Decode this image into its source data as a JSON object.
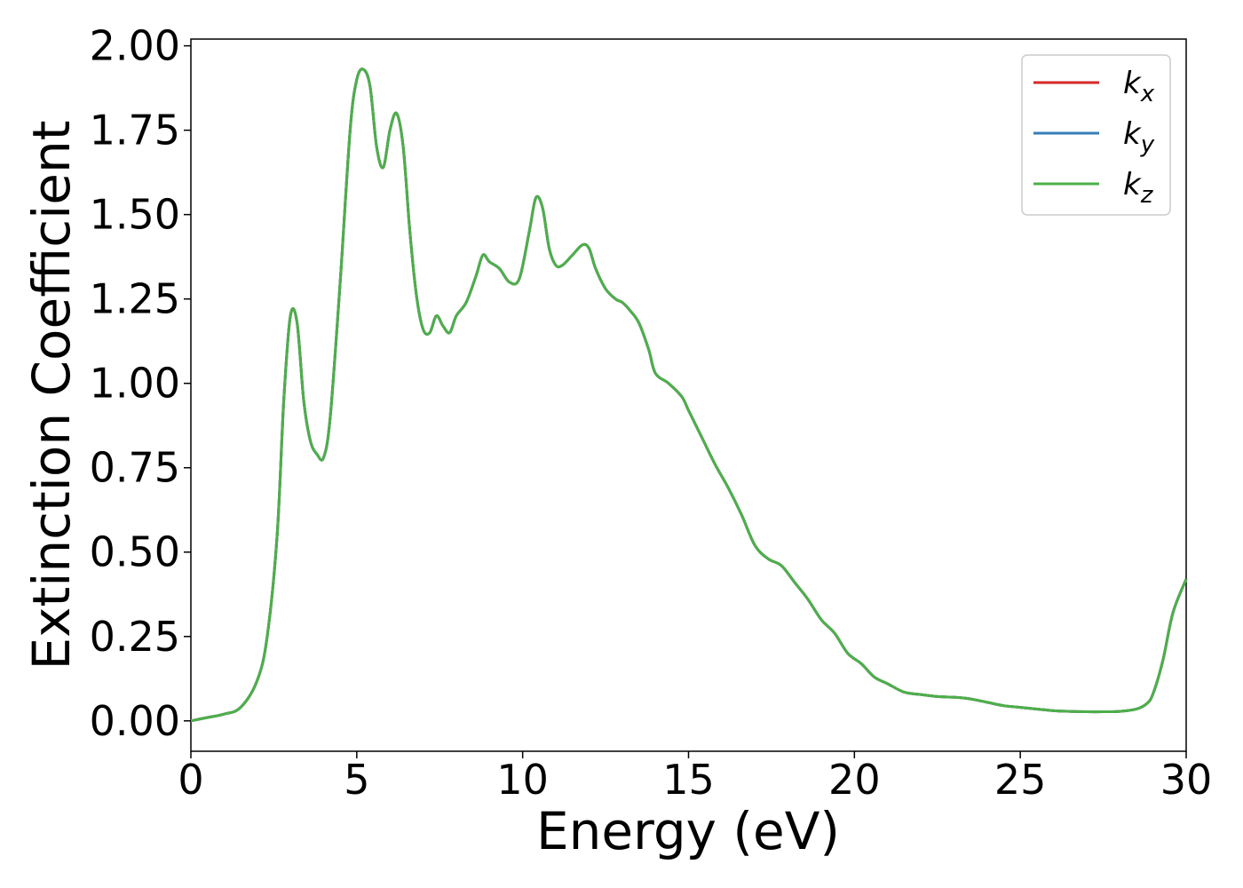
{
  "chart_data": {
    "type": "line",
    "xlabel": "Energy (eV)",
    "ylabel": "Extinction Coefficient",
    "xlim": [
      0,
      30
    ],
    "ylim": [
      -0.09,
      2.02
    ],
    "xticks": [
      "0",
      "5",
      "10",
      "15",
      "20",
      "25",
      "30"
    ],
    "yticks": [
      "0.00",
      "0.25",
      "0.50",
      "0.75",
      "1.00",
      "1.25",
      "1.50",
      "1.75",
      "2.00"
    ],
    "grid": false,
    "legend_position": "top-right",
    "series": [
      {
        "name": "k",
        "subscript": "x",
        "color": "#d62728",
        "x": [
          0,
          0.5,
          1.0,
          1.5,
          2.0,
          2.3,
          2.6,
          2.8,
          3.0,
          3.2,
          3.4,
          3.6,
          3.8,
          4.0,
          4.2,
          4.5,
          4.8,
          5.0,
          5.2,
          5.4,
          5.6,
          5.8,
          6.0,
          6.2,
          6.4,
          6.6,
          6.8,
          7.0,
          7.2,
          7.4,
          7.6,
          7.8,
          8.0,
          8.3,
          8.6,
          8.8,
          9.0,
          9.3,
          9.6,
          9.9,
          10.2,
          10.4,
          10.6,
          10.8,
          11.0,
          11.2,
          11.5,
          11.8,
          12.0,
          12.2,
          12.5,
          12.8,
          13.0,
          13.2,
          13.5,
          13.8,
          14.0,
          14.4,
          14.8,
          15.0,
          15.4,
          15.8,
          16.2,
          16.6,
          17.0,
          17.4,
          17.8,
          18.2,
          18.6,
          19.0,
          19.4,
          19.8,
          20.2,
          20.6,
          21.0,
          21.5,
          22.0,
          22.5,
          23.0,
          23.5,
          24.0,
          24.5,
          25.0,
          25.5,
          26.0,
          26.5,
          27.0,
          27.5,
          28.0,
          28.5,
          28.8,
          29.0,
          29.3,
          29.6,
          30.0
        ],
        "y": [
          0.0,
          0.01,
          0.02,
          0.04,
          0.12,
          0.25,
          0.55,
          0.95,
          1.2,
          1.18,
          0.95,
          0.83,
          0.79,
          0.78,
          0.9,
          1.3,
          1.75,
          1.9,
          1.93,
          1.88,
          1.7,
          1.64,
          1.75,
          1.8,
          1.7,
          1.45,
          1.26,
          1.16,
          1.15,
          1.2,
          1.17,
          1.15,
          1.2,
          1.24,
          1.32,
          1.38,
          1.36,
          1.34,
          1.3,
          1.31,
          1.45,
          1.55,
          1.52,
          1.4,
          1.35,
          1.35,
          1.38,
          1.41,
          1.4,
          1.34,
          1.28,
          1.25,
          1.24,
          1.22,
          1.18,
          1.1,
          1.03,
          1.0,
          0.96,
          0.92,
          0.84,
          0.76,
          0.69,
          0.61,
          0.52,
          0.48,
          0.46,
          0.41,
          0.36,
          0.3,
          0.26,
          0.2,
          0.17,
          0.13,
          0.11,
          0.085,
          0.078,
          0.072,
          0.07,
          0.065,
          0.055,
          0.045,
          0.04,
          0.035,
          0.03,
          0.028,
          0.027,
          0.027,
          0.028,
          0.035,
          0.05,
          0.08,
          0.18,
          0.32,
          0.42
        ]
      },
      {
        "name": "k",
        "subscript": "y",
        "color": "#377eb8",
        "x": [
          0,
          0.5,
          1.0,
          1.5,
          2.0,
          2.3,
          2.6,
          2.8,
          3.0,
          3.2,
          3.4,
          3.6,
          3.8,
          4.0,
          4.2,
          4.5,
          4.8,
          5.0,
          5.2,
          5.4,
          5.6,
          5.8,
          6.0,
          6.2,
          6.4,
          6.6,
          6.8,
          7.0,
          7.2,
          7.4,
          7.6,
          7.8,
          8.0,
          8.3,
          8.6,
          8.8,
          9.0,
          9.3,
          9.6,
          9.9,
          10.2,
          10.4,
          10.6,
          10.8,
          11.0,
          11.2,
          11.5,
          11.8,
          12.0,
          12.2,
          12.5,
          12.8,
          13.0,
          13.2,
          13.5,
          13.8,
          14.0,
          14.4,
          14.8,
          15.0,
          15.4,
          15.8,
          16.2,
          16.6,
          17.0,
          17.4,
          17.8,
          18.2,
          18.6,
          19.0,
          19.4,
          19.8,
          20.2,
          20.6,
          21.0,
          21.5,
          22.0,
          22.5,
          23.0,
          23.5,
          24.0,
          24.5,
          25.0,
          25.5,
          26.0,
          26.5,
          27.0,
          27.5,
          28.0,
          28.5,
          28.8,
          29.0,
          29.3,
          29.6,
          30.0
        ],
        "y": [
          0.0,
          0.01,
          0.02,
          0.04,
          0.12,
          0.25,
          0.55,
          0.95,
          1.2,
          1.18,
          0.95,
          0.83,
          0.79,
          0.78,
          0.9,
          1.3,
          1.75,
          1.9,
          1.93,
          1.88,
          1.7,
          1.64,
          1.75,
          1.8,
          1.7,
          1.45,
          1.26,
          1.16,
          1.15,
          1.2,
          1.17,
          1.15,
          1.2,
          1.24,
          1.32,
          1.38,
          1.36,
          1.34,
          1.3,
          1.31,
          1.45,
          1.55,
          1.52,
          1.4,
          1.35,
          1.35,
          1.38,
          1.41,
          1.4,
          1.34,
          1.28,
          1.25,
          1.24,
          1.22,
          1.18,
          1.1,
          1.03,
          1.0,
          0.96,
          0.92,
          0.84,
          0.76,
          0.69,
          0.61,
          0.52,
          0.48,
          0.46,
          0.41,
          0.36,
          0.3,
          0.26,
          0.2,
          0.17,
          0.13,
          0.11,
          0.085,
          0.078,
          0.072,
          0.07,
          0.065,
          0.055,
          0.045,
          0.04,
          0.035,
          0.03,
          0.028,
          0.027,
          0.027,
          0.028,
          0.035,
          0.05,
          0.08,
          0.18,
          0.32,
          0.42
        ]
      },
      {
        "name": "k",
        "subscript": "z",
        "color": "#4daf4a",
        "x": [
          0,
          0.5,
          1.0,
          1.5,
          2.0,
          2.3,
          2.6,
          2.8,
          3.0,
          3.2,
          3.4,
          3.6,
          3.8,
          4.0,
          4.2,
          4.5,
          4.8,
          5.0,
          5.2,
          5.4,
          5.6,
          5.8,
          6.0,
          6.2,
          6.4,
          6.6,
          6.8,
          7.0,
          7.2,
          7.4,
          7.6,
          7.8,
          8.0,
          8.3,
          8.6,
          8.8,
          9.0,
          9.3,
          9.6,
          9.9,
          10.2,
          10.4,
          10.6,
          10.8,
          11.0,
          11.2,
          11.5,
          11.8,
          12.0,
          12.2,
          12.5,
          12.8,
          13.0,
          13.2,
          13.5,
          13.8,
          14.0,
          14.4,
          14.8,
          15.0,
          15.4,
          15.8,
          16.2,
          16.6,
          17.0,
          17.4,
          17.8,
          18.2,
          18.6,
          19.0,
          19.4,
          19.8,
          20.2,
          20.6,
          21.0,
          21.5,
          22.0,
          22.5,
          23.0,
          23.5,
          24.0,
          24.5,
          25.0,
          25.5,
          26.0,
          26.5,
          27.0,
          27.5,
          28.0,
          28.5,
          28.8,
          29.0,
          29.3,
          29.6,
          30.0
        ],
        "y": [
          0.0,
          0.01,
          0.02,
          0.04,
          0.12,
          0.25,
          0.55,
          0.95,
          1.2,
          1.18,
          0.95,
          0.83,
          0.79,
          0.78,
          0.9,
          1.3,
          1.75,
          1.9,
          1.93,
          1.88,
          1.7,
          1.64,
          1.75,
          1.8,
          1.7,
          1.45,
          1.26,
          1.16,
          1.15,
          1.2,
          1.17,
          1.15,
          1.2,
          1.24,
          1.32,
          1.38,
          1.36,
          1.34,
          1.3,
          1.31,
          1.45,
          1.55,
          1.52,
          1.4,
          1.35,
          1.35,
          1.38,
          1.41,
          1.4,
          1.34,
          1.28,
          1.25,
          1.24,
          1.22,
          1.18,
          1.1,
          1.03,
          1.0,
          0.96,
          0.92,
          0.84,
          0.76,
          0.69,
          0.61,
          0.52,
          0.48,
          0.46,
          0.41,
          0.36,
          0.3,
          0.26,
          0.2,
          0.17,
          0.13,
          0.11,
          0.085,
          0.078,
          0.072,
          0.07,
          0.065,
          0.055,
          0.045,
          0.04,
          0.035,
          0.03,
          0.028,
          0.027,
          0.027,
          0.028,
          0.035,
          0.05,
          0.08,
          0.18,
          0.32,
          0.42
        ]
      }
    ]
  }
}
